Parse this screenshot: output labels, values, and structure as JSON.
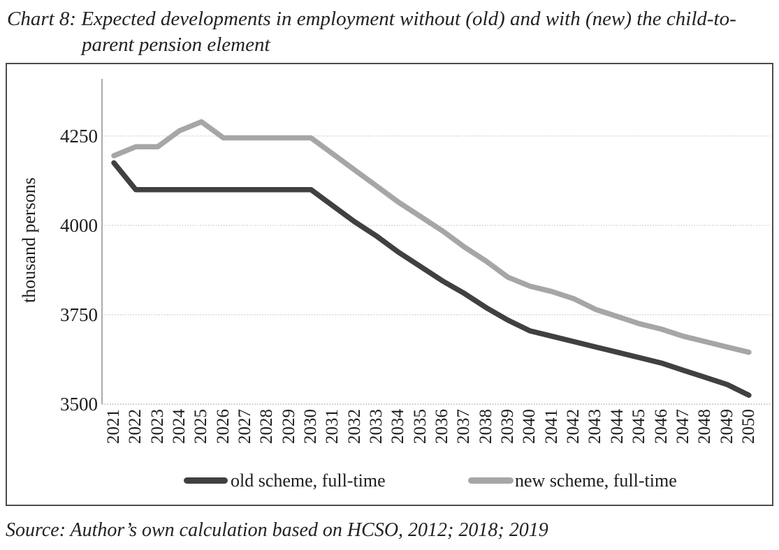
{
  "page": {
    "title_line1": "Chart 8: Expected developments in employment without (old) and with (new) the child-to-",
    "title_line2": "parent pension element",
    "source": "Source: Author’s own calculation based on HCSO, 2012; 2018; 2019"
  },
  "chart_data": {
    "type": "line",
    "title": "Chart 8: Expected developments in employment without (old) and with (new) the child-to-parent pension element",
    "xlabel": "",
    "ylabel": "thousand persons",
    "ylim": [
      3500,
      4410
    ],
    "yticks": [
      3500,
      3750,
      4000,
      4250
    ],
    "grid": "horizontal-dotted",
    "legend_position": "bottom",
    "x": [
      2021,
      2022,
      2023,
      2024,
      2025,
      2026,
      2027,
      2028,
      2029,
      2030,
      2031,
      2032,
      2033,
      2034,
      2035,
      2036,
      2037,
      2038,
      2039,
      2040,
      2041,
      2042,
      2043,
      2044,
      2045,
      2046,
      2047,
      2048,
      2049,
      2050
    ],
    "series": [
      {
        "name": "old scheme, full-time",
        "color": "#404040",
        "values": [
          4175,
          4100,
          4100,
          4100,
          4100,
          4100,
          4100,
          4100,
          4100,
          4100,
          4055,
          4010,
          3970,
          3925,
          3885,
          3845,
          3810,
          3770,
          3735,
          3705,
          3690,
          3675,
          3660,
          3645,
          3630,
          3615,
          3595,
          3575,
          3555,
          3525
        ]
      },
      {
        "name": "new scheme, full-time",
        "color": "#a6a6a6",
        "values": [
          4195,
          4220,
          4220,
          4265,
          4290,
          4245,
          4245,
          4245,
          4245,
          4245,
          4200,
          4155,
          4110,
          4065,
          4025,
          3985,
          3940,
          3900,
          3855,
          3830,
          3815,
          3795,
          3765,
          3745,
          3725,
          3710,
          3690,
          3675,
          3660,
          3645
        ]
      }
    ],
    "style": {
      "grid_color": "#b9b9b9",
      "axis_color": "#8f8f8f",
      "frame_color": "#4b4b4b"
    }
  }
}
